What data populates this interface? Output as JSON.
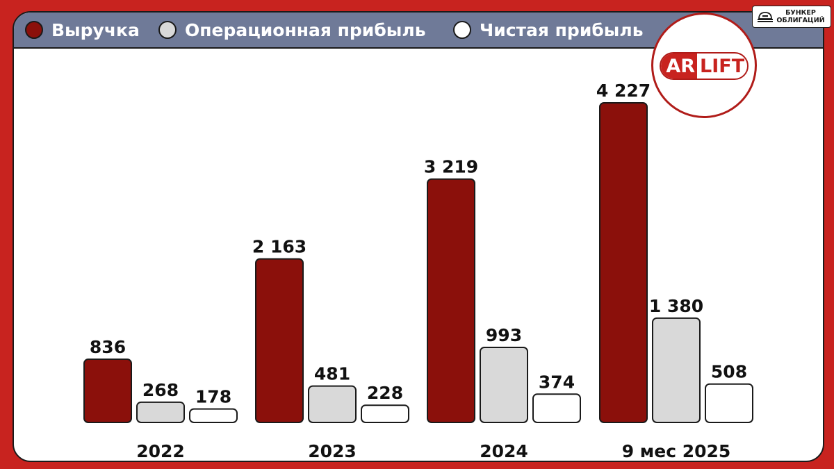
{
  "legend": [
    {
      "label": "Выручка",
      "color": "#8b100b"
    },
    {
      "label": "Операционная прибыль",
      "color": "#d9d9d9"
    },
    {
      "label": "Чистая прибыль",
      "color": "#ffffff"
    }
  ],
  "brand": {
    "text_line1": "БУНКЕР",
    "text_line2": "ОБЛИГАЦИЙ",
    "icon": "bunker-icon"
  },
  "logo": {
    "part1": "AR",
    "part2": "LIFT",
    "primary_color": "#c8231f"
  },
  "colors": {
    "background": "#c8231f",
    "legend_bar": "#6f7a98",
    "panel": "#ffffff"
  },
  "chart_data": {
    "type": "bar",
    "categories": [
      "2022",
      "2023",
      "2024",
      "9 мес 2025"
    ],
    "series": [
      {
        "name": "Выручка",
        "color": "#8b100b",
        "values": [
          836,
          2163,
          3219,
          4227
        ],
        "labels": [
          "836",
          "2 163",
          "3 219",
          "4 227"
        ]
      },
      {
        "name": "Операционная прибыль",
        "color": "#d9d9d9",
        "values": [
          268,
          481,
          993,
          1380
        ],
        "labels": [
          "268",
          "481",
          "993",
          "1 380"
        ]
      },
      {
        "name": "Чистая прибыль",
        "color": "#ffffff",
        "values": [
          178,
          228,
          374,
          508
        ],
        "labels": [
          "178",
          "228",
          "374",
          "508"
        ]
      }
    ],
    "title": "",
    "xlabel": "",
    "ylabel": "",
    "ylim": [
      0,
      4227
    ],
    "grid": false,
    "legend_position": "top"
  }
}
